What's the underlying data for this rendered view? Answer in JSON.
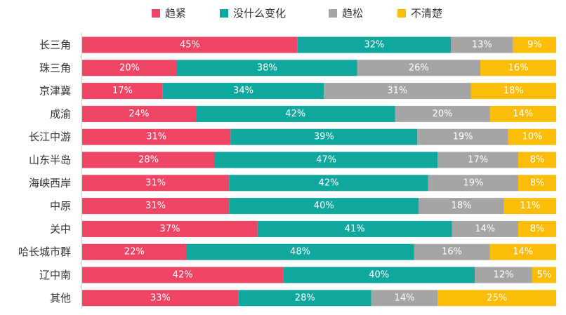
{
  "chart_data": {
    "type": "bar",
    "orientation": "horizontal",
    "stacked": "100%",
    "categories": [
      "长三角",
      "珠三角",
      "京津冀",
      "成渝",
      "长江中游",
      "山东半岛",
      "海峡西岸",
      "中原",
      "关中",
      "哈长城市群",
      "辽中南",
      "其他"
    ],
    "series": [
      {
        "name": "趋紧",
        "color": "#ef4565",
        "values": [
          45,
          20,
          17,
          24,
          31,
          28,
          31,
          31,
          37,
          22,
          42,
          33
        ]
      },
      {
        "name": "没什么变化",
        "color": "#10a89e",
        "values": [
          32,
          38,
          34,
          42,
          39,
          47,
          42,
          40,
          41,
          48,
          40,
          28
        ]
      },
      {
        "name": "趋松",
        "color": "#a5a5a5",
        "values": [
          13,
          26,
          31,
          20,
          19,
          17,
          19,
          18,
          14,
          16,
          12,
          14
        ]
      },
      {
        "name": "不清楚",
        "color": "#fbbd08",
        "values": [
          9,
          16,
          18,
          14,
          10,
          8,
          8,
          11,
          8,
          14,
          5,
          25
        ]
      }
    ],
    "value_suffix": "%",
    "xlim": [
      0,
      100
    ],
    "legend_position": "top",
    "grid": false
  }
}
